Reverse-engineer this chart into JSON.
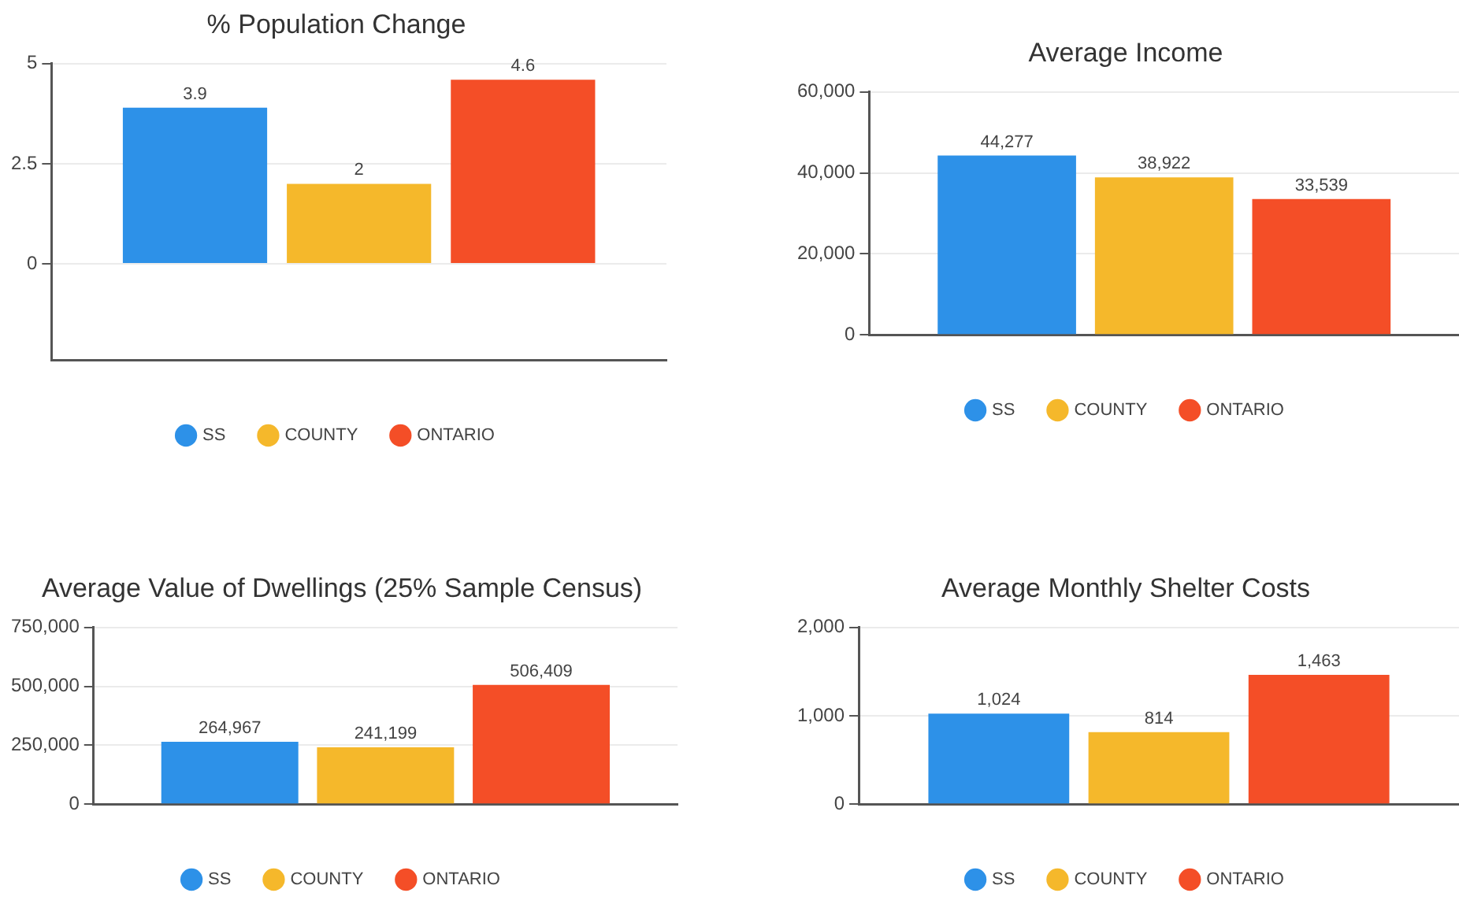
{
  "chart_data": [
    {
      "type": "bar",
      "title": "% Population Change",
      "categories": [
        null
      ],
      "series": [
        {
          "name": "SS",
          "color": "#2d91e8",
          "values": [
            3.9
          ]
        },
        {
          "name": "COUNTY",
          "color": "#f5b82b",
          "values": [
            2
          ]
        },
        {
          "name": "ONTARIO",
          "color": "#f44e27",
          "values": [
            4.6
          ]
        }
      ],
      "ylim": [
        -2.4,
        5
      ],
      "yticks": [
        0,
        2.5,
        5
      ],
      "grid": "y",
      "legend": "bottom",
      "data_labels": true
    },
    {
      "type": "bar",
      "title": "Average Income",
      "categories": [
        null
      ],
      "series": [
        {
          "name": "SS",
          "color": "#2d91e8",
          "values": [
            44277
          ],
          "value_labels": [
            "44,277"
          ]
        },
        {
          "name": "COUNTY",
          "color": "#f5b82b",
          "values": [
            38922
          ],
          "value_labels": [
            "38,922"
          ]
        },
        {
          "name": "ONTARIO",
          "color": "#f44e27",
          "values": [
            33539
          ],
          "value_labels": [
            "33,539"
          ]
        }
      ],
      "ylim": [
        0,
        60000
      ],
      "yticks": [
        0,
        {
          "value": 20000,
          "label": "20,000"
        },
        {
          "value": 40000,
          "label": "40,000"
        },
        {
          "value": 60000,
          "label": "60,000"
        }
      ],
      "grid": "y",
      "legend": "bottom"
    },
    {
      "type": "bar",
      "title": "Average Value of Dwellings (25% Sample Census)",
      "categories": [
        null
      ],
      "series": [
        {
          "name": "SS",
          "color": "#2d91e8",
          "values": [
            264967
          ],
          "value_labels": [
            "264,967"
          ]
        },
        {
          "name": "COUNTY",
          "color": "#f5b82b",
          "values": [
            241199
          ],
          "value_labels": [
            "241,199"
          ]
        },
        {
          "name": "ONTARIO",
          "color": "#f44e27",
          "values": [
            506409
          ],
          "value_labels": [
            "506,409"
          ]
        }
      ],
      "ylim": [
        0,
        750000
      ],
      "yticks": [
        0,
        {
          "value": 250000,
          "label": "250,000"
        },
        {
          "value": 500000,
          "label": "500,000"
        },
        {
          "value": 750000,
          "label": "750,000"
        }
      ],
      "grid": "y",
      "legend": "bottom"
    },
    {
      "type": "bar",
      "title": "Average Monthly Shelter Costs",
      "categories": [
        null
      ],
      "series": [
        {
          "name": "SS",
          "color": "#2d91e8",
          "values": [
            1024
          ],
          "value_labels": [
            "1,024"
          ]
        },
        {
          "name": "COUNTY",
          "color": "#f5b82b",
          "values": [
            814
          ],
          "value_labels": [
            "814"
          ]
        },
        {
          "name": "ONTARIO",
          "color": "#f44e27",
          "values": [
            1463
          ],
          "value_labels": [
            "1,463"
          ]
        }
      ],
      "ylim": [
        0,
        2000
      ],
      "yticks": [
        0,
        {
          "value": 1000,
          "label": "1,000"
        },
        {
          "value": 2000,
          "label": "2,000"
        }
      ],
      "grid": "y",
      "legend": "bottom"
    }
  ]
}
